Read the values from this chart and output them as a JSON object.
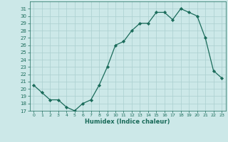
{
  "x": [
    0,
    1,
    2,
    3,
    4,
    5,
    6,
    7,
    8,
    9,
    10,
    11,
    12,
    13,
    14,
    15,
    16,
    17,
    18,
    19,
    20,
    21,
    22,
    23
  ],
  "y": [
    20.5,
    19.5,
    18.5,
    18.5,
    17.5,
    17.0,
    18.0,
    18.5,
    20.5,
    23.0,
    26.0,
    26.5,
    28.0,
    29.0,
    29.0,
    30.5,
    30.5,
    29.5,
    31.0,
    30.5,
    30.0,
    27.0,
    22.5,
    21.5
  ],
  "xlabel": "Humidex (Indice chaleur)",
  "xlim": [
    -0.5,
    23.5
  ],
  "ylim": [
    17,
    32
  ],
  "yticks": [
    17,
    18,
    19,
    20,
    21,
    22,
    23,
    24,
    25,
    26,
    27,
    28,
    29,
    30,
    31
  ],
  "xticks": [
    0,
    1,
    2,
    3,
    4,
    5,
    6,
    7,
    8,
    9,
    10,
    11,
    12,
    13,
    14,
    15,
    16,
    17,
    18,
    19,
    20,
    21,
    22,
    23
  ],
  "line_color": "#1a6b5a",
  "marker_color": "#1a6b5a",
  "bg_color": "#cce8e8",
  "grid_color": "#aacfcf",
  "label_color": "#1a6b5a",
  "tick_color": "#1a6b5a",
  "axis_color": "#1a6b5a"
}
